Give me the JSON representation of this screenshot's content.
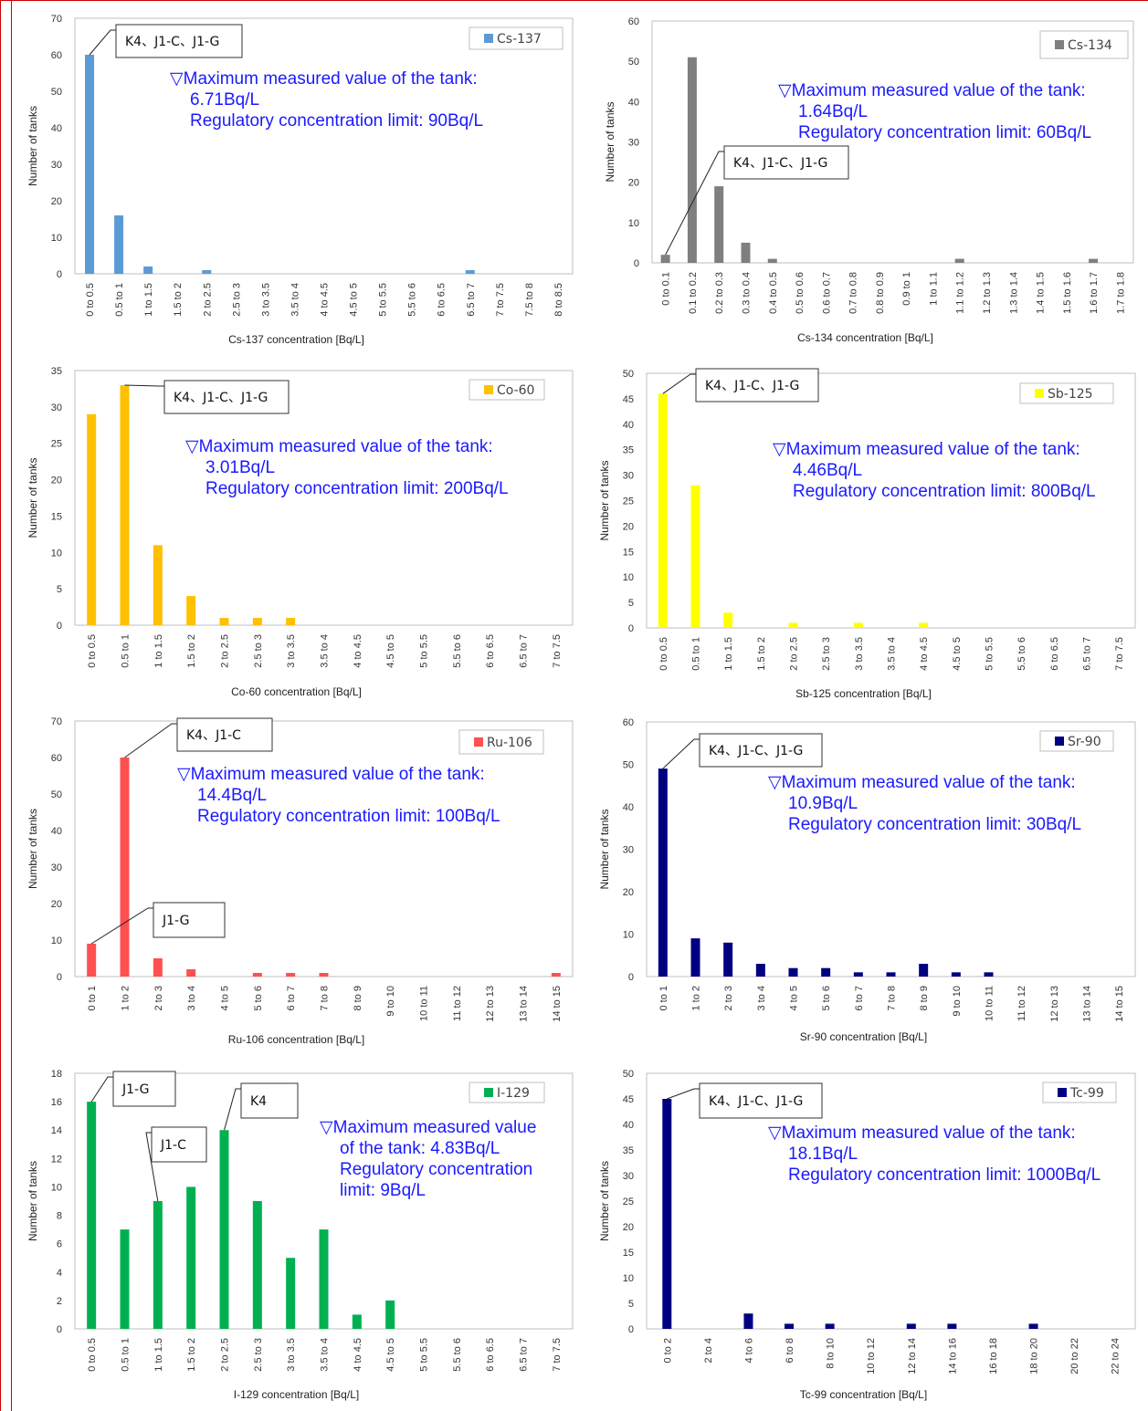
{
  "chart_data": [
    {
      "type": "bar",
      "series_name": "Cs-137",
      "color": "#5b9bd5",
      "categories": [
        "0 to 0.5",
        "0.5 to 1",
        "1 to 1.5",
        "1.5 to 2",
        "2 to 2.5",
        "2.5 to 3",
        "3 to 3.5",
        "3.5 to 4",
        "4 to 4.5",
        "4.5 to 5",
        "5 to 5.5",
        "5.5 to 6",
        "6 to 6.5",
        "6.5 to 7",
        "7 to 7.5",
        "7.5 to 8",
        "8 to 8.5"
      ],
      "values": [
        60,
        16,
        2,
        0,
        1,
        0,
        0,
        0,
        0,
        0,
        0,
        0,
        0,
        1,
        0,
        0,
        0
      ],
      "ylim": [
        0,
        70
      ],
      "yticks": [
        0,
        10,
        20,
        30,
        40,
        50,
        60,
        70
      ],
      "xlabel": "Cs-137 concentration [Bq/L]",
      "ylabel": "Number of tanks",
      "annotation": [
        "▽Maximum measured value of the tank:",
        "6.71Bq/L",
        "Regulatory concentration limit: 90Bq/L"
      ],
      "callouts": [
        {
          "label": "K4、J1-C、J1-G",
          "index": 0
        }
      ]
    },
    {
      "type": "bar",
      "series_name": "Cs-134",
      "color": "#7f7f7f",
      "categories": [
        "0 to 0.1",
        "0.1 to 0.2",
        "0.2 to 0.3",
        "0.3 to 0.4",
        "0.4 to 0.5",
        "0.5 to 0.6",
        "0.6 to 0.7",
        "0.7 to 0.8",
        "0.8 to 0.9",
        "0.9 to 1",
        "1 to 1.1",
        "1.1 to 1.2",
        "1.2 to 1.3",
        "1.3 to 1.4",
        "1.4 to 1.5",
        "1.5 to 1.6",
        "1.6 to 1.7",
        "1.7 to 1.8"
      ],
      "values": [
        2,
        51,
        19,
        5,
        1,
        0,
        0,
        0,
        0,
        0,
        0,
        1,
        0,
        0,
        0,
        0,
        1,
        0
      ],
      "ylim": [
        0,
        60
      ],
      "yticks": [
        0,
        10,
        20,
        30,
        40,
        50,
        60
      ],
      "xlabel": "Cs-134 concentration [Bq/L]",
      "ylabel": "Number of tanks",
      "annotation": [
        "▽Maximum measured value of the tank:",
        "1.64Bq/L",
        "Regulatory concentration limit: 60Bq/L"
      ],
      "callouts": [
        {
          "label": "K4、J1-C、J1-G",
          "index": 0
        }
      ]
    },
    {
      "type": "bar",
      "series_name": "Co-60",
      "color": "#ffc000",
      "categories": [
        "0 to 0.5",
        "0.5 to 1",
        "1 to 1.5",
        "1.5 to 2",
        "2 to 2.5",
        "2.5 to 3",
        "3 to 3.5",
        "3.5 to 4",
        "4 to 4.5",
        "4.5 to 5",
        "5 to 5.5",
        "5.5 to 6",
        "6 to 6.5",
        "6.5 to 7",
        "7 to 7.5"
      ],
      "values": [
        29,
        33,
        11,
        4,
        1,
        1,
        1,
        0,
        0,
        0,
        0,
        0,
        0,
        0,
        0
      ],
      "ylim": [
        0,
        35
      ],
      "yticks": [
        0,
        5,
        10,
        15,
        20,
        25,
        30,
        35
      ],
      "xlabel": "Co-60 concentration [Bq/L]",
      "ylabel": "Number of tanks",
      "annotation": [
        "▽Maximum measured value of the tank:",
        "3.01Bq/L",
        "Regulatory concentration limit: 200Bq/L"
      ],
      "callouts": [
        {
          "label": "K4、J1-C、J1-G",
          "index": 1
        }
      ]
    },
    {
      "type": "bar",
      "series_name": "Sb-125",
      "color": "#ffff00",
      "categories": [
        "0 to 0.5",
        "0.5 to 1",
        "1 to 1.5",
        "1.5 to 2",
        "2 to 2.5",
        "2.5 to 3",
        "3 to 3.5",
        "3.5 to 4",
        "4 to 4.5",
        "4.5 to 5",
        "5 to 5.5",
        "5.5 to 6",
        "6 to 6.5",
        "6.5 to 7",
        "7 to 7.5"
      ],
      "values": [
        46,
        28,
        3,
        0,
        1,
        0,
        1,
        0,
        1,
        0,
        0,
        0,
        0,
        0,
        0
      ],
      "ylim": [
        0,
        50
      ],
      "yticks": [
        0,
        5,
        10,
        15,
        20,
        25,
        30,
        35,
        40,
        45,
        50
      ],
      "xlabel": "Sb-125 concentration [Bq/L]",
      "ylabel": "Number of tanks",
      "annotation": [
        "▽Maximum measured value of the tank:",
        "4.46Bq/L",
        "Regulatory concentration limit: 800Bq/L"
      ],
      "callouts": [
        {
          "label": "K4、J1-C、J1-G",
          "index": 0
        }
      ]
    },
    {
      "type": "bar",
      "series_name": "Ru-106",
      "color": "#ff5050",
      "categories": [
        "0 to 1",
        "1 to 2",
        "2 to 3",
        "3 to 4",
        "4 to 5",
        "5 to 6",
        "6 to 7",
        "7 to 8",
        "8 to 9",
        "9 to 10",
        "10 to 11",
        "11 to 12",
        "12 to 13",
        "13 to 14",
        "14 to 15"
      ],
      "values": [
        9,
        60,
        5,
        2,
        0,
        1,
        1,
        1,
        0,
        0,
        0,
        0,
        0,
        0,
        1
      ],
      "ylim": [
        0,
        70
      ],
      "yticks": [
        0,
        10,
        20,
        30,
        40,
        50,
        60,
        70
      ],
      "xlabel": "Ru-106 concentration [Bq/L]",
      "ylabel": "Number of tanks",
      "annotation": [
        "▽Maximum measured value of the tank:",
        "14.4Bq/L",
        "Regulatory concentration limit: 100Bq/L"
      ],
      "callouts": [
        {
          "label": "K4、J1-C",
          "index": 1
        },
        {
          "label": "J1-G",
          "index": 0
        }
      ]
    },
    {
      "type": "bar",
      "series_name": "Sr-90",
      "color": "#000080",
      "categories": [
        "0 to 1",
        "1 to 2",
        "2 to 3",
        "3 to 4",
        "4 to 5",
        "5 to 6",
        "6 to 7",
        "7 to 8",
        "8 to 9",
        "9 to 10",
        "10 to 11",
        "11 to 12",
        "12 to 13",
        "13 to 14",
        "14 to 15"
      ],
      "values": [
        49,
        9,
        8,
        3,
        2,
        2,
        1,
        1,
        3,
        1,
        1,
        0,
        0,
        0,
        0
      ],
      "ylim": [
        0,
        60
      ],
      "yticks": [
        0,
        10,
        20,
        30,
        40,
        50,
        60
      ],
      "xlabel": "Sr-90 concentration [Bq/L]",
      "ylabel": "Number of tanks",
      "annotation": [
        "▽Maximum measured value of the tank:",
        "10.9Bq/L",
        "Regulatory concentration limit: 30Bq/L"
      ],
      "callouts": [
        {
          "label": "K4、J1-C、J1-G",
          "index": 0
        }
      ]
    },
    {
      "type": "bar",
      "series_name": "I-129",
      "color": "#00b050",
      "categories": [
        "0 to 0.5",
        "0.5 to 1",
        "1 to 1.5",
        "1.5 to 2",
        "2 to 2.5",
        "2.5 to 3",
        "3 to 3.5",
        "3.5 to 4",
        "4 to 4.5",
        "4.5 to 5",
        "5 to 5.5",
        "5.5 to 6",
        "6 to 6.5",
        "6.5 to 7",
        "7 to 7.5"
      ],
      "values": [
        16,
        7,
        9,
        10,
        14,
        9,
        5,
        7,
        1,
        2,
        0,
        0,
        0,
        0,
        0
      ],
      "ylim": [
        0,
        18
      ],
      "yticks": [
        0,
        2,
        4,
        6,
        8,
        10,
        12,
        14,
        16,
        18
      ],
      "xlabel": "I-129 concentration [Bq/L]",
      "ylabel": "Number of tanks",
      "annotation": [
        "▽Maximum measured value",
        "of the tank: 4.83Bq/L",
        "Regulatory concentration",
        "limit: 9Bq/L"
      ],
      "callouts": [
        {
          "label": "J1-G",
          "index": 0
        },
        {
          "label": "J1-C",
          "index": 2
        },
        {
          "label": "K4",
          "index": 4
        }
      ]
    },
    {
      "type": "bar",
      "series_name": "Tc-99",
      "color": "#000080",
      "categories": [
        "0 to 2",
        "2 to 4",
        "4 to 6",
        "6 to 8",
        "8 to 10",
        "10 to 12",
        "12 to 14",
        "14 to 16",
        "16 to 18",
        "18 to 20",
        "20 to 22",
        "22 to 24"
      ],
      "values": [
        45,
        0,
        3,
        1,
        1,
        0,
        1,
        1,
        0,
        1,
        0,
        0
      ],
      "ylim": [
        0,
        50
      ],
      "yticks": [
        0,
        5,
        10,
        15,
        20,
        25,
        30,
        35,
        40,
        45,
        50
      ],
      "xlabel": "Tc-99 concentration [Bq/L]",
      "ylabel": "Number of tanks",
      "annotation": [
        "▽Maximum measured value of the tank:",
        "18.1Bq/L",
        "Regulatory concentration limit: 1000Bq/L"
      ],
      "callouts": [
        {
          "label": "K4、J1-C、J1-G",
          "index": 0
        }
      ]
    }
  ]
}
